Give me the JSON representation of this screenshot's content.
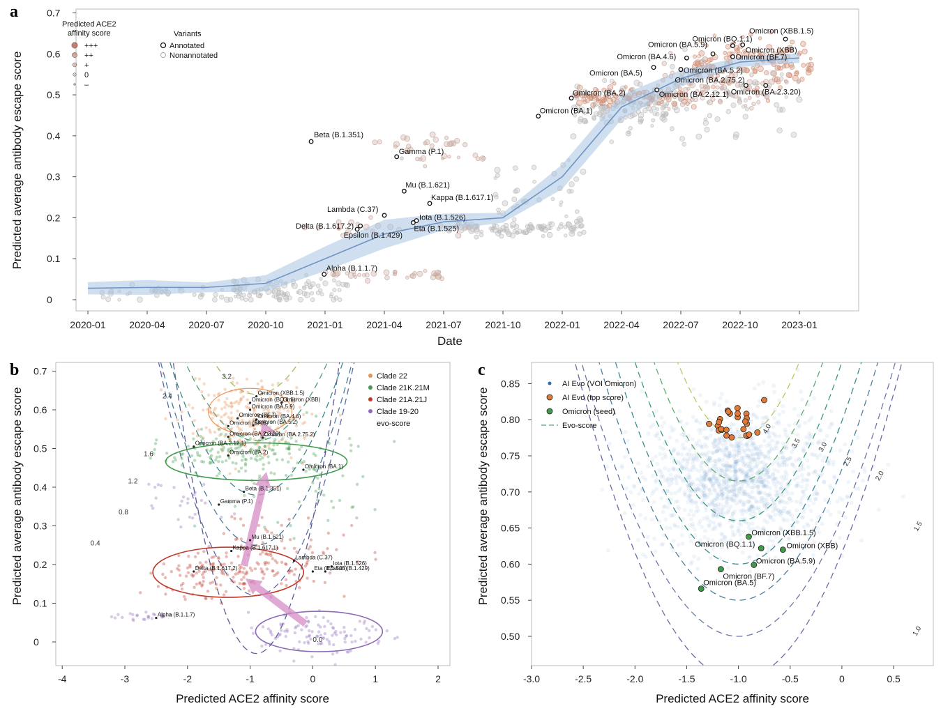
{
  "colors": {
    "band": "#a9c4e2",
    "median": "#6d94c4",
    "annotated_stroke": "#111111",
    "score_pp": "#d08e76",
    "score_p": "#c9aaa0",
    "score_0": "#bdbdbd",
    "clade22": "#e8955a",
    "clade21K": "#3f9a49",
    "clade21A": "#c0392b",
    "clade19": "#8e6ab8",
    "ai_evo": "#2a6db5",
    "ai_top": "#e07b39",
    "seed": "#3f9a49"
  },
  "chart_data": [
    {
      "panel": "a",
      "type": "scatter",
      "xlabel": "Date",
      "ylabel": "Predicted average antibody escape score",
      "ylim": [
        0,
        0.7
      ],
      "yticks": [
        "0",
        "0.1",
        "0.2",
        "0.3",
        "0.4",
        "0.5",
        "0.6",
        "0.7"
      ],
      "xticks": [
        "2020-01",
        "2020-04",
        "2020-07",
        "2020-10",
        "2021-01",
        "2021-04",
        "2021-07",
        "2021-10",
        "2022-01",
        "2022-04",
        "2022-07",
        "2022-10",
        "2023-01"
      ],
      "legend_affinity": {
        "title_lines": [
          "Predicted ACE2",
          "affinity score"
        ],
        "items": [
          "+++",
          "++",
          "+",
          "0",
          "–"
        ]
      },
      "legend_variants": {
        "title": "Variants",
        "items": [
          "Annotated",
          "Nonannotated"
        ]
      },
      "median_trend": [
        {
          "x": "2020-01",
          "y": 0.028
        },
        {
          "x": "2020-04",
          "y": 0.03
        },
        {
          "x": "2020-07",
          "y": 0.03
        },
        {
          "x": "2020-10",
          "y": 0.04
        },
        {
          "x": "2021-01",
          "y": 0.1
        },
        {
          "x": "2021-04",
          "y": 0.16
        },
        {
          "x": "2021-07",
          "y": 0.19
        },
        {
          "x": "2021-10",
          "y": 0.2
        },
        {
          "x": "2022-01",
          "y": 0.3
        },
        {
          "x": "2022-04",
          "y": 0.47
        },
        {
          "x": "2022-07",
          "y": 0.54
        },
        {
          "x": "2022-10",
          "y": 0.58
        },
        {
          "x": "2023-01",
          "y": 0.59
        }
      ],
      "annotated": [
        {
          "label": "Beta (B.1.351)",
          "x": "2020-12-10",
          "y": 0.386
        },
        {
          "label": "Gamma (P.1)",
          "x": "2021-04-20",
          "y": 0.349
        },
        {
          "label": "Mu (B.1.621)",
          "x": "2021-05-01",
          "y": 0.265
        },
        {
          "label": "Kappa (B.1.617.1)",
          "x": "2021-06-10",
          "y": 0.235
        },
        {
          "label": "Lambda (C.37)",
          "x": "2021-04-01",
          "y": 0.206
        },
        {
          "label": "Iota (B.1.526)",
          "x": "2021-05-20",
          "y": 0.193
        },
        {
          "label": "Eta (B.1.525)",
          "x": "2021-05-15",
          "y": 0.188
        },
        {
          "label": "Delta (B.1.617.2)",
          "x": "2021-02-20",
          "y": 0.172
        },
        {
          "label": "Epsilon (B.1.429)",
          "x": "2021-02-25",
          "y": 0.18
        },
        {
          "label": "Alpha (B.1.1.7)",
          "x": "2020-12-30",
          "y": 0.062
        },
        {
          "label": "Omicron (BA.1)",
          "x": "2021-11-25",
          "y": 0.448
        },
        {
          "label": "Omicron (BA.2)",
          "x": "2022-01-15",
          "y": 0.492
        },
        {
          "label": "Omicron (BA.2.12.1)",
          "x": "2022-05-25",
          "y": 0.512
        },
        {
          "label": "Omicron (BA.2.75.2)",
          "x": "2022-10-10",
          "y": 0.523
        },
        {
          "label": "Omicron (BA.2.3.20)",
          "x": "2022-11-10",
          "y": 0.523
        },
        {
          "label": "Omicron (BA.5)",
          "x": "2022-05-20",
          "y": 0.567
        },
        {
          "label": "Omicron (BA.4.6)",
          "x": "2022-07-10",
          "y": 0.59
        },
        {
          "label": "Omicron (BA.5.2)",
          "x": "2022-07-01",
          "y": 0.562
        },
        {
          "label": "Omicron (BA.5.9)",
          "x": "2022-08-20",
          "y": 0.6
        },
        {
          "label": "Omicron (BQ.1.1)",
          "x": "2022-09-20",
          "y": 0.62
        },
        {
          "label": "Omicron (XBB.1.5)",
          "x": "2022-12-10",
          "y": 0.636
        },
        {
          "label": "Omicron (XBB)",
          "x": "2022-10-05",
          "y": 0.622
        },
        {
          "label": "Omicron (BF.7)",
          "x": "2022-09-20",
          "y": 0.593
        }
      ]
    },
    {
      "panel": "b",
      "type": "scatter",
      "xlabel": "Predicted ACE2 affinity score",
      "ylabel": "Predicted average antibody escape score",
      "xlim": [
        -4.1,
        2.2
      ],
      "ylim": [
        -0.06,
        0.71
      ],
      "xticks": [
        "-4",
        "-3",
        "-2",
        "-1",
        "0",
        "1",
        "2"
      ],
      "yticks": [
        "0",
        "0.1",
        "0.2",
        "0.3",
        "0.4",
        "0.5",
        "0.6",
        "0.7"
      ],
      "legend": [
        "Clade 22",
        "Clade 21K.21M",
        "Clade 21A.21J",
        "Clade 19-20"
      ],
      "contour_legend": "evo-score",
      "contour_labels": [
        "0.0",
        "0.4",
        "0.8",
        "1.2",
        "1.6",
        "2.4",
        "3.2"
      ],
      "annotated": [
        {
          "label": "Omicron (XBB.1.5)",
          "x": -0.9,
          "y": 0.635
        },
        {
          "label": "Omicron (BQ.1.1)",
          "x": -1.0,
          "y": 0.618
        },
        {
          "label": "Omicron (XBB)",
          "x": -0.5,
          "y": 0.618
        },
        {
          "label": "Omicron (BA.5.9)",
          "x": -1.0,
          "y": 0.6
        },
        {
          "label": "Omicron (BF.7)",
          "x": -1.2,
          "y": 0.578
        },
        {
          "label": "Omicron (BA.4.6)",
          "x": -0.9,
          "y": 0.575
        },
        {
          "label": "Omicron (BA.5)",
          "x": -1.35,
          "y": 0.558
        },
        {
          "label": "Omicron (BA.5.2)",
          "x": -0.95,
          "y": 0.56
        },
        {
          "label": "Omicron (BA.2.3.20)",
          "x": -1.35,
          "y": 0.53
        },
        {
          "label": "Omicron (BA.2.75.2)",
          "x": -0.8,
          "y": 0.528
        },
        {
          "label": "Omicron (BA.2.12.1)",
          "x": -1.9,
          "y": 0.505
        },
        {
          "label": "Omicron (BA.2)",
          "x": -1.35,
          "y": 0.482
        },
        {
          "label": "Omicron (BA.1)",
          "x": -0.15,
          "y": 0.445
        },
        {
          "label": "Beta (B.1.351)",
          "x": -1.1,
          "y": 0.388
        },
        {
          "label": "Gamma (P.1)",
          "x": -1.5,
          "y": 0.355
        },
        {
          "label": "Mu (B.1.621)",
          "x": -1.0,
          "y": 0.263
        },
        {
          "label": "Kappa (B.1.617.1)",
          "x": -1.3,
          "y": 0.235
        },
        {
          "label": "Lambda (C.37)",
          "x": -0.3,
          "y": 0.21
        },
        {
          "label": "Delta (B.1.617.2)",
          "x": -1.9,
          "y": 0.182
        },
        {
          "label": "Eta (B.1.525)",
          "x": 0.0,
          "y": 0.182
        },
        {
          "label": "Iota (B.1.526)",
          "x": 0.3,
          "y": 0.195
        },
        {
          "label": "Epsilon (B.1.429)",
          "x": 0.2,
          "y": 0.182
        },
        {
          "label": "Alpha (B.1.1.7)",
          "x": -2.5,
          "y": 0.062
        }
      ]
    },
    {
      "panel": "c",
      "type": "scatter",
      "xlabel": "Predicted ACE2 affinity score",
      "ylabel": "Predicted average antibody escape score",
      "xlim": [
        -3.0,
        0.9
      ],
      "ylim": [
        0.46,
        0.87
      ],
      "xticks": [
        "-3.0",
        "-2.5",
        "-2.0",
        "-1.5",
        "-1.0",
        "-0.5",
        "0",
        "0.5"
      ],
      "yticks": [
        "0.50",
        "0.55",
        "0.60",
        "0.65",
        "0.70",
        "0.75",
        "0.80",
        "0.85"
      ],
      "legend": [
        "AI Evo (VOI Omicron)",
        "AI Evo (top score)",
        "Omicron (seed)",
        "Evo-score"
      ],
      "contour_labels": [
        "1.0",
        "1.5",
        "2.0",
        "2.5",
        "3.0",
        "3.5",
        "4.0"
      ],
      "seeds": [
        {
          "label": "Omicron (XBB.1.5)",
          "x": -0.9,
          "y": 0.638
        },
        {
          "label": "Omicron (BQ.1.1)",
          "x": -0.78,
          "y": 0.622
        },
        {
          "label": "Omicron (XBB)",
          "x": -0.57,
          "y": 0.62
        },
        {
          "label": "Omicron (BA.5.9)",
          "x": -0.85,
          "y": 0.599
        },
        {
          "label": "Omicron (BF.7)",
          "x": -1.17,
          "y": 0.593
        },
        {
          "label": "Omicron (BA.5)",
          "x": -1.36,
          "y": 0.566
        }
      ]
    }
  ]
}
